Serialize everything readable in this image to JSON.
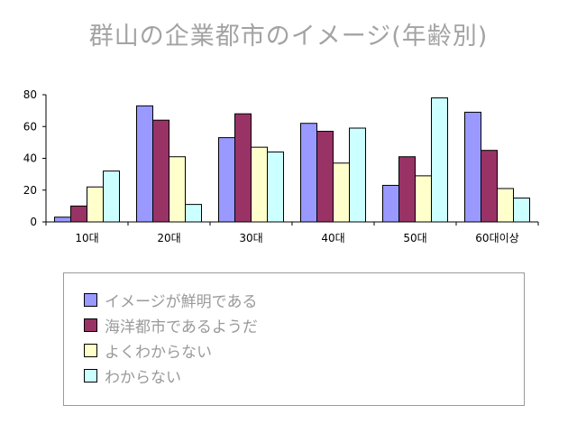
{
  "chart_data": {
    "type": "bar",
    "title": "群山の企業都市のイメージ(年齢別)",
    "xlabel": "",
    "ylabel": "",
    "categories": [
      "10대",
      "20대",
      "30대",
      "40대",
      "50대",
      "60대이상"
    ],
    "ylim": [
      0,
      80
    ],
    "yticks": [
      0,
      20,
      40,
      60,
      80
    ],
    "grid": false,
    "legend_position": "bottom",
    "series": [
      {
        "name": "イメージが鮮明である",
        "color": "#9999ff",
        "values": [
          3,
          73,
          53,
          62,
          23,
          69
        ]
      },
      {
        "name": "海洋都市であるようだ",
        "color": "#993366",
        "values": [
          10,
          64,
          68,
          57,
          41,
          45
        ]
      },
      {
        "name": "よくわからない",
        "color": "#ffffcc",
        "values": [
          22,
          41,
          47,
          37,
          29,
          21
        ]
      },
      {
        "name": "わからない",
        "color": "#ccffff",
        "values": [
          32,
          11,
          44,
          59,
          78,
          15
        ]
      }
    ]
  }
}
